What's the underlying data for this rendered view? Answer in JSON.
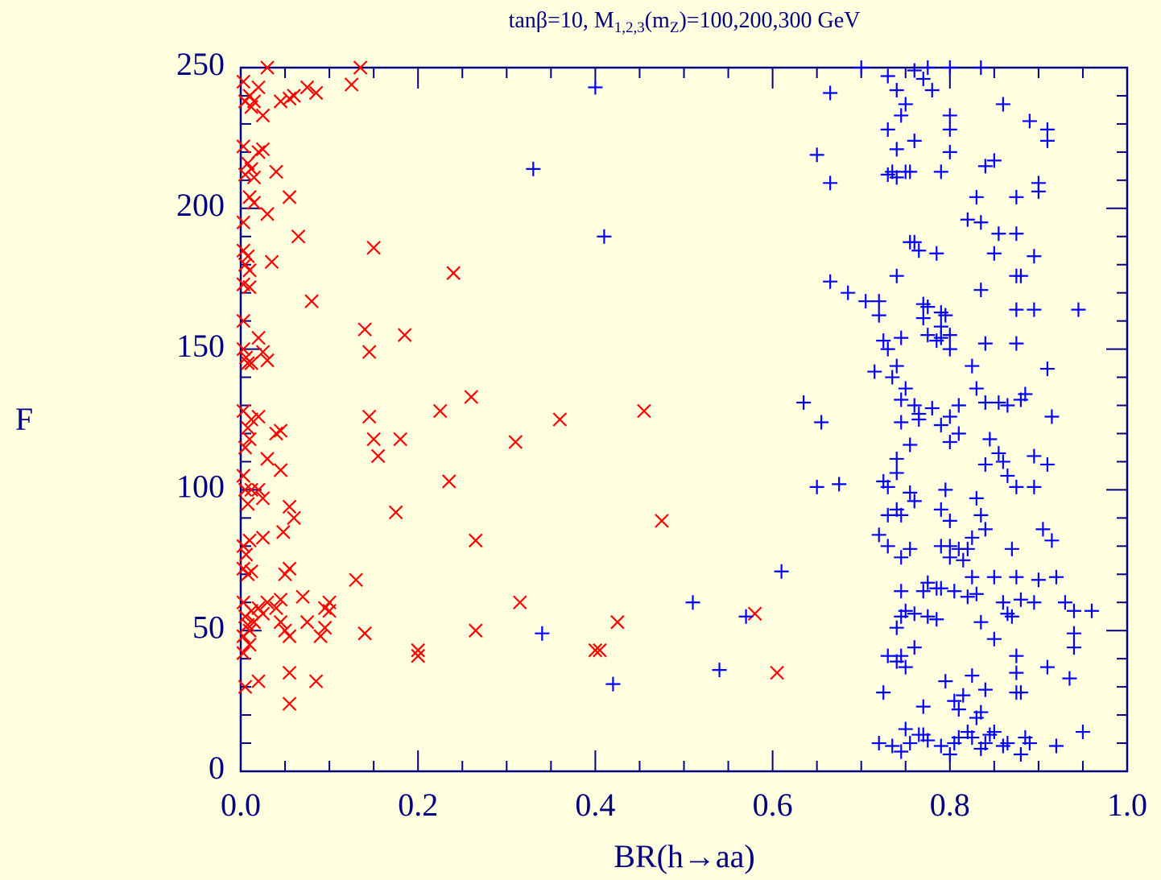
{
  "chart_data": {
    "type": "scatter",
    "title": [
      "tanβ=10, M",
      "1,2,3",
      "(m",
      "Z",
      ")=100,200,300 GeV"
    ],
    "xlabel": "BR(h→aa)",
    "ylabel": "F",
    "xlim": [
      0,
      1
    ],
    "ylim": [
      0,
      250
    ],
    "xticks": [
      {
        "value": 0,
        "label": "0.0"
      },
      {
        "value": 0.2,
        "label": "0.2"
      },
      {
        "value": 0.4,
        "label": "0.4"
      },
      {
        "value": 0.6,
        "label": "0.6"
      },
      {
        "value": 0.8,
        "label": "0.8"
      },
      {
        "value": 1,
        "label": "1.0"
      }
    ],
    "yticks": [
      0,
      50,
      100,
      150,
      200,
      250
    ],
    "xminorticks": [
      0.05,
      0.1,
      0.15,
      0.25,
      0.3,
      0.35,
      0.45,
      0.5,
      0.55,
      0.65,
      0.7,
      0.75,
      0.85,
      0.9,
      0.95
    ],
    "yminorticks": [
      10,
      20,
      30,
      40,
      60,
      70,
      80,
      90,
      110,
      120,
      130,
      140,
      160,
      170,
      180,
      190,
      210,
      220,
      230,
      240
    ],
    "axis_color": "#000080",
    "background": "#ffffe0",
    "series": [
      {
        "color": "#ff0000",
        "marker": "x",
        "x": [
          0.003,
          0.01,
          0.012,
          0.02,
          0.005,
          0.015,
          0.025,
          0.03,
          0.045,
          0.055,
          0.06,
          0.075,
          0.085,
          0.125,
          0.135,
          0.003,
          0.008,
          0.005,
          0.012,
          0.02,
          0.025,
          0.015,
          0.04,
          0.01,
          0.015,
          0.03,
          0.003,
          0.055,
          0.065,
          0.003,
          0.008,
          0.005,
          0.01,
          0.003,
          0.01,
          0.035,
          0.08,
          0.15,
          0.24,
          0.003,
          0.003,
          0.006,
          0.008,
          0.012,
          0.02,
          0.025,
          0.03,
          0.14,
          0.145,
          0.185,
          0.003,
          0.008,
          0.012,
          0.005,
          0.01,
          0.02,
          0.04,
          0.045,
          0.03,
          0.045,
          0.145,
          0.15,
          0.155,
          0.18,
          0.225,
          0.26,
          0.31,
          0.36,
          0.455,
          0.003,
          0.005,
          0.008,
          0.012,
          0.02,
          0.025,
          0.055,
          0.06,
          0.048,
          0.025,
          0.235,
          0.175,
          0.265,
          0.475,
          0.003,
          0.006,
          0.01,
          0.003,
          0.008,
          0.012,
          0.05,
          0.055,
          0.13,
          0.003,
          0.005,
          0.008,
          0.01,
          0.003,
          0.012,
          0.015,
          0.02,
          0.025,
          0.03,
          0.04,
          0.045,
          0.045,
          0.05,
          0.055,
          0.07,
          0.075,
          0.09,
          0.095,
          0.1,
          0.1,
          0.14,
          0.2,
          0.2,
          0.265,
          0.315,
          0.4,
          0.405,
          0.425,
          0.58,
          0.605,
          0.003,
          0.01,
          0.005,
          0.02,
          0.055,
          0.085,
          0.055,
          0.095
        ],
        "values": [
          245,
          240,
          236,
          243,
          238,
          238,
          233,
          250,
          238,
          239,
          240,
          243,
          241,
          244,
          250,
          222,
          216,
          212,
          214,
          220,
          221,
          211,
          213,
          204,
          202,
          198,
          195,
          204,
          190,
          185,
          183,
          180,
          178,
          173,
          172,
          181,
          167,
          186,
          177,
          160,
          150,
          147,
          145,
          145,
          154,
          149,
          146,
          157,
          149,
          155,
          128,
          122,
          125,
          115,
          118,
          126,
          120,
          121,
          111,
          107,
          126,
          118,
          112,
          118,
          128,
          133,
          117,
          125,
          128,
          105,
          100,
          95,
          100,
          100,
          97,
          94,
          90,
          85,
          83,
          103,
          92,
          82,
          89,
          80,
          77,
          82,
          72,
          70,
          71,
          70,
          72,
          68,
          60,
          55,
          52,
          50,
          48,
          57,
          53,
          58,
          56,
          60,
          58,
          61,
          53,
          50,
          48,
          62,
          53,
          48,
          58,
          57,
          60,
          49,
          43,
          41,
          50,
          60,
          43,
          43,
          53,
          56,
          35,
          42,
          45,
          30,
          32,
          35,
          32,
          24,
          51
        ]
      },
      {
        "color": "#0000ff",
        "marker": "+",
        "x": [
          0.4,
          0.7,
          0.73,
          0.74,
          0.76,
          0.77,
          0.775,
          0.78,
          0.8,
          0.835,
          0.665,
          0.745,
          0.75,
          0.8,
          0.8,
          0.86,
          0.89,
          0.91,
          0.91,
          0.73,
          0.74,
          0.76,
          0.8,
          0.65,
          0.665,
          0.73,
          0.735,
          0.74,
          0.75,
          0.755,
          0.79,
          0.84,
          0.85,
          0.9,
          0.9,
          0.33,
          0.41,
          0.83,
          0.875,
          0.82,
          0.835,
          0.855,
          0.875,
          0.895,
          0.85,
          0.755,
          0.76,
          0.765,
          0.785,
          0.665,
          0.685,
          0.705,
          0.72,
          0.74,
          0.77,
          0.775,
          0.79,
          0.795,
          0.835,
          0.875,
          0.88,
          0.875,
          0.895,
          0.945,
          0.72,
          0.77,
          0.79,
          0.8,
          0.79,
          0.8,
          0.725,
          0.73,
          0.745,
          0.775,
          0.785,
          0.84,
          0.875,
          0.74,
          0.825,
          0.91,
          0.715,
          0.735,
          0.75,
          0.745,
          0.76,
          0.765,
          0.78,
          0.79,
          0.8,
          0.81,
          0.83,
          0.84,
          0.855,
          0.865,
          0.885,
          0.88,
          0.915,
          0.635,
          0.655,
          0.745,
          0.765,
          0.755,
          0.8,
          0.81,
          0.845,
          0.855,
          0.86,
          0.865,
          0.84,
          0.875,
          0.895,
          0.91,
          0.895,
          0.74,
          0.74,
          0.725,
          0.73,
          0.755,
          0.76,
          0.74,
          0.745,
          0.73,
          0.65,
          0.675,
          0.795,
          0.83,
          0.835,
          0.79,
          0.8,
          0.84,
          0.905,
          0.915,
          0.72,
          0.73,
          0.745,
          0.755,
          0.79,
          0.8,
          0.81,
          0.8,
          0.815,
          0.82,
          0.825,
          0.87,
          0.9,
          0.92,
          0.825,
          0.85,
          0.875,
          0.745,
          0.77,
          0.775,
          0.785,
          0.79,
          0.805,
          0.83,
          0.82,
          0.86,
          0.865,
          0.88,
          0.895,
          0.93,
          0.94,
          0.96,
          0.75,
          0.745,
          0.76,
          0.775,
          0.785,
          0.835,
          0.87,
          0.74,
          0.94,
          0.94,
          0.85,
          0.61,
          0.51,
          0.57,
          0.34,
          0.54,
          0.42,
          0.73,
          0.745,
          0.76,
          0.74,
          0.75,
          0.875,
          0.875,
          0.88,
          0.91,
          0.935,
          0.725,
          0.77,
          0.795,
          0.805,
          0.81,
          0.815,
          0.825,
          0.84,
          0.835,
          0.875,
          0.72,
          0.735,
          0.745,
          0.75,
          0.755,
          0.77,
          0.775,
          0.79,
          0.8,
          0.805,
          0.81,
          0.82,
          0.825,
          0.835,
          0.84,
          0.845,
          0.85,
          0.86,
          0.865,
          0.88,
          0.885,
          0.89,
          0.92,
          0.95,
          0.83,
          0.765
        ],
        "values": [
          243,
          250,
          247,
          242,
          249,
          246,
          250,
          242,
          250,
          250,
          241,
          233,
          237,
          233,
          228,
          237,
          231,
          228,
          224,
          228,
          221,
          224,
          220,
          219,
          209,
          212,
          213,
          211,
          213,
          213,
          213,
          215,
          217,
          209,
          206,
          214,
          190,
          204,
          204,
          196,
          195,
          191,
          191,
          183,
          184,
          188,
          188,
          185,
          184,
          174,
          170,
          167,
          167,
          176,
          166,
          165,
          163,
          162,
          171,
          176,
          176,
          164,
          164,
          164,
          162,
          161,
          158,
          155,
          154,
          150,
          153,
          150,
          154,
          155,
          153,
          152,
          152,
          144,
          144,
          143,
          142,
          140,
          136,
          132,
          130,
          127,
          129,
          123,
          126,
          130,
          136,
          131,
          131,
          130,
          134,
          132,
          126,
          131,
          124,
          124,
          125,
          116,
          117,
          120,
          118,
          113,
          110,
          105,
          109,
          101,
          112,
          109,
          101,
          111,
          106,
          103,
          101,
          99,
          96,
          93,
          91,
          91,
          101,
          102,
          100,
          97,
          91,
          93,
          89,
          86,
          86,
          82,
          84,
          80,
          76,
          79,
          80,
          80,
          79,
          76,
          75,
          79,
          83,
          79,
          68,
          69,
          69,
          69,
          69,
          64,
          64,
          67,
          65,
          65,
          64,
          63,
          62,
          60,
          56,
          61,
          60,
          60,
          57,
          57,
          57,
          55,
          56,
          55,
          54,
          53,
          55,
          51,
          49,
          44,
          47,
          71,
          60,
          55,
          49,
          36,
          31,
          41,
          41,
          44,
          39,
          37,
          41,
          35,
          28,
          37,
          33,
          28,
          23,
          32,
          25,
          22,
          27,
          34,
          29,
          21,
          28,
          10,
          9,
          7,
          15,
          10,
          13,
          11,
          9,
          6,
          10,
          12,
          14,
          12,
          8,
          10,
          13,
          14,
          9,
          10,
          6,
          12,
          10,
          9,
          14,
          19,
          13
        ]
      }
    ]
  }
}
